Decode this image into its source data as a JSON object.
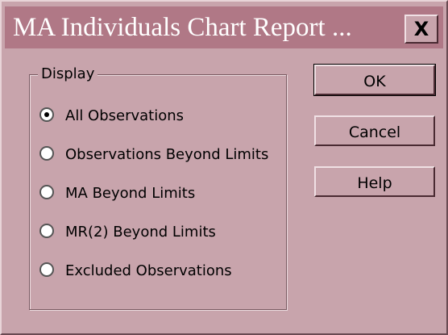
{
  "dialog": {
    "title": "MA Individuals Chart Report ...",
    "close": "X",
    "group": {
      "label": "Display",
      "options": [
        "All Observations",
        "Observations Beyond Limits",
        "MA Beyond Limits",
        "MR(2) Beyond Limits",
        "Excluded Observations"
      ],
      "selected": 0
    },
    "buttons": [
      "OK",
      "Cancel",
      "Help"
    ]
  }
}
